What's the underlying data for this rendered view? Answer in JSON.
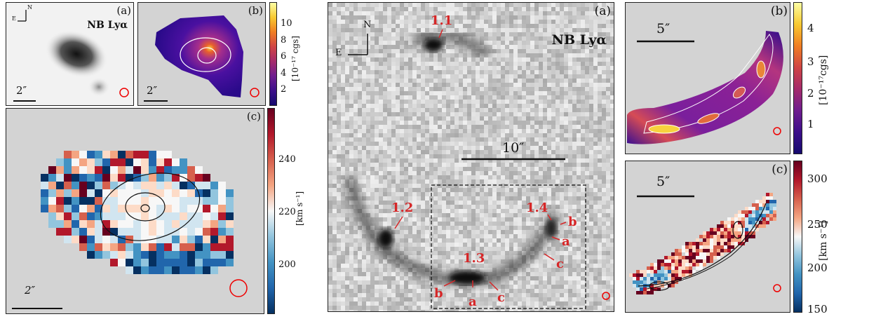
{
  "left_figure": {
    "panel_a": {
      "tag": "(a)",
      "title": "NB Lyα",
      "scale": "2″",
      "compass_n": "N",
      "compass_e": "E"
    },
    "panel_b": {
      "tag": "(b)",
      "scale": "2″",
      "colorbar": {
        "ticks": [
          "10",
          "8",
          "6",
          "4",
          "2"
        ],
        "label": "[10⁻¹⁷ cgs]"
      }
    },
    "panel_c": {
      "tag": "(c)",
      "scale": "2″",
      "colorbar": {
        "ticks": [
          "240",
          "220",
          "200"
        ],
        "label": "[km s⁻¹]"
      }
    }
  },
  "right_figure": {
    "panel_a": {
      "tag": "(a)",
      "title": "NB Lyα",
      "scale": "10″",
      "compass_n": "N",
      "compass_e": "E",
      "labels": {
        "l11": "1.1",
        "l12": "1.2",
        "l13": "1.3",
        "l14": "1.4",
        "b1": "b",
        "a1": "a",
        "c1": "c",
        "b2": "b",
        "a2": "a",
        "c2": "c"
      }
    },
    "panel_b": {
      "tag": "(b)",
      "scale": "5″",
      "colorbar": {
        "ticks": [
          "4",
          "3",
          "2",
          "1"
        ],
        "label": "[10⁻¹⁷cgs]"
      }
    },
    "panel_c": {
      "tag": "(c)",
      "scale": "5″",
      "colorbar": {
        "ticks": [
          "300",
          "250",
          "200",
          "150"
        ],
        "label": "[km s⁻¹]"
      }
    }
  },
  "colors": {
    "accent_red": "#d62728",
    "panel_bg": "#d3d3d3"
  }
}
